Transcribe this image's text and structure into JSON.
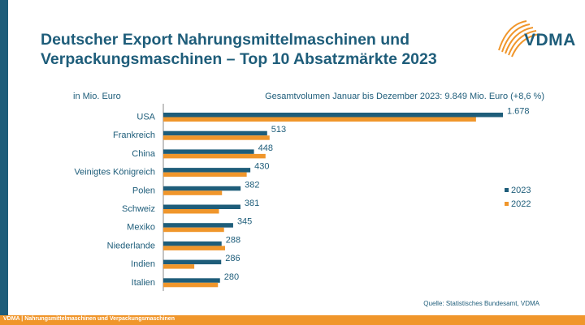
{
  "header": {
    "title_line1": "Deutscher Export Nahrungsmittelmaschinen und",
    "title_line2": "Verpackungsmaschinen – Top 10 Absatzmärkte 2023",
    "logo_text": "VDMA"
  },
  "unit_label": "in Mio. Euro",
  "subtitle": "Gesamtvolumen Januar bis Dezember 2023: 9.849 Mio. Euro (+8,6 %)",
  "source": "Quelle: Statistisches Bundesamt, VDMA",
  "footer": "VDMA | Nahrungsmittelmaschinen und Verpackungsmaschinen",
  "colors": {
    "primary": "#1e5d7a",
    "accent": "#f0962b"
  },
  "chart_data": {
    "type": "bar",
    "orientation": "horizontal",
    "categories": [
      "USA",
      "Frankreich",
      "China",
      "Veinigtes Königreich",
      "Polen",
      "Schweiz",
      "Mexiko",
      "Niederlande",
      "Indien",
      "Italien"
    ],
    "series": [
      {
        "name": "2023",
        "color": "#1e5d7a",
        "values": [
          1678,
          513,
          448,
          430,
          382,
          381,
          345,
          288,
          286,
          280
        ],
        "labels": [
          "1.678",
          "513",
          "448",
          "430",
          "382",
          "381",
          "345",
          "288",
          "286",
          "280"
        ]
      },
      {
        "name": "2022",
        "color": "#f0962b",
        "values": [
          1545,
          525,
          505,
          412,
          290,
          275,
          300,
          305,
          153,
          270
        ]
      }
    ],
    "xlim": [
      0,
      1700
    ],
    "legend_position": "right",
    "grid": false
  }
}
